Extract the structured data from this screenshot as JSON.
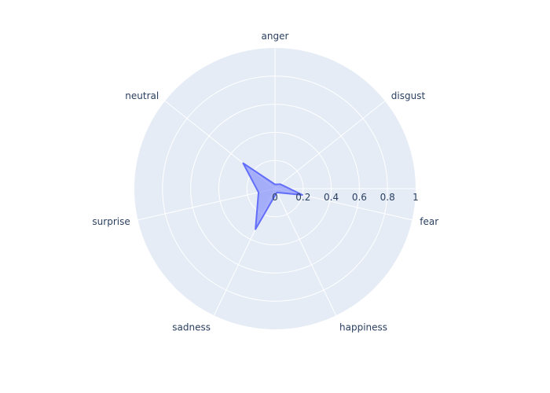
{
  "chart_data": {
    "type": "radar",
    "categories": [
      "anger",
      "disgust",
      "fear",
      "happiness",
      "sadness",
      "surprise",
      "neutral"
    ],
    "series": [
      {
        "values": [
          0.03,
          0.05,
          0.2,
          0.03,
          0.32,
          0.12,
          0.29
        ]
      }
    ],
    "radial_range": [
      0,
      1
    ],
    "radial_ticks": [
      "0",
      "0.2",
      "0.4",
      "0.6",
      "0.8",
      "1"
    ],
    "title": "",
    "grid": true,
    "colors": {
      "polar_bg": "#e5ecf6",
      "grid": "#ffffff",
      "fill": "#636efa",
      "fill_opacity": 0.5,
      "line": "#636efa",
      "text": "#2a3f5f"
    }
  }
}
